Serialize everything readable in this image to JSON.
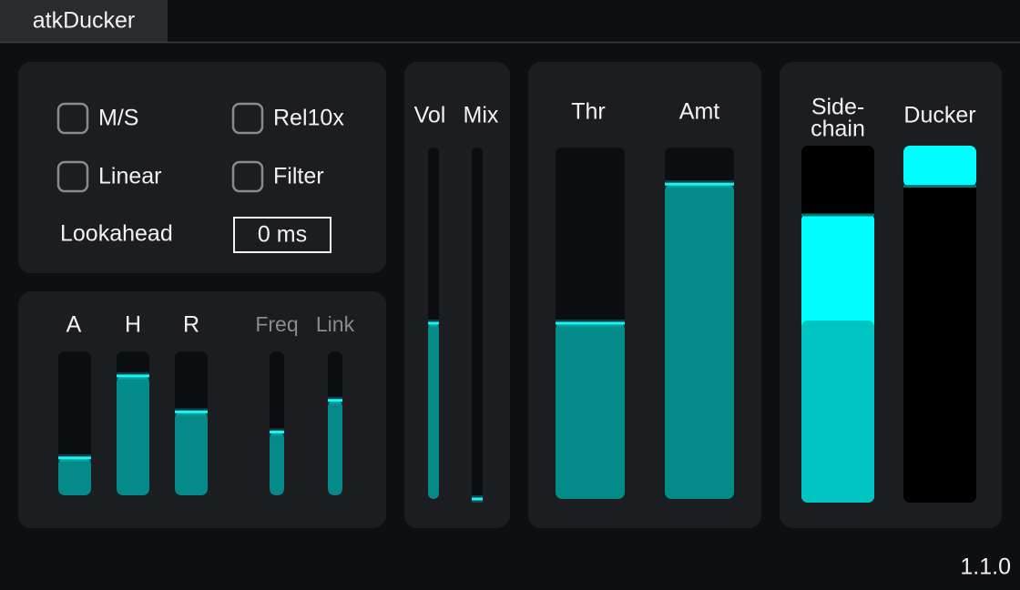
{
  "title": "atkDucker",
  "version": "1.1.0",
  "options": {
    "checkboxes": [
      {
        "label": "M/S",
        "checked": false
      },
      {
        "label": "Rel10x",
        "checked": false
      },
      {
        "label": "Linear",
        "checked": false
      },
      {
        "label": "Filter",
        "checked": false
      }
    ],
    "lookahead": {
      "label": "Lookahead",
      "value": "0 ms"
    }
  },
  "envelope": {
    "sliders": [
      {
        "label": "A",
        "level": 0.26,
        "disabled": false
      },
      {
        "label": "H",
        "level": 0.83,
        "disabled": false
      },
      {
        "label": "R",
        "level": 0.58,
        "disabled": false
      },
      {
        "label": "Freq",
        "level": 0.44,
        "disabled": true
      },
      {
        "label": "Link",
        "level": 0.66,
        "disabled": true
      }
    ]
  },
  "output": {
    "sliders": [
      {
        "label": "Vol",
        "level": 0.5
      },
      {
        "label": "Mix",
        "level": 0
      }
    ]
  },
  "dynamics": {
    "sliders": [
      {
        "label": "Thr",
        "level": 0.5
      },
      {
        "label": "Amt",
        "level": 0.896
      }
    ]
  },
  "meters": {
    "sidechain": {
      "label_lines": [
        "Side-",
        "chain"
      ],
      "level": 0.51,
      "peak": 0.81
    },
    "ducker": {
      "label": "Ducker",
      "reduction": 0.115
    }
  }
}
